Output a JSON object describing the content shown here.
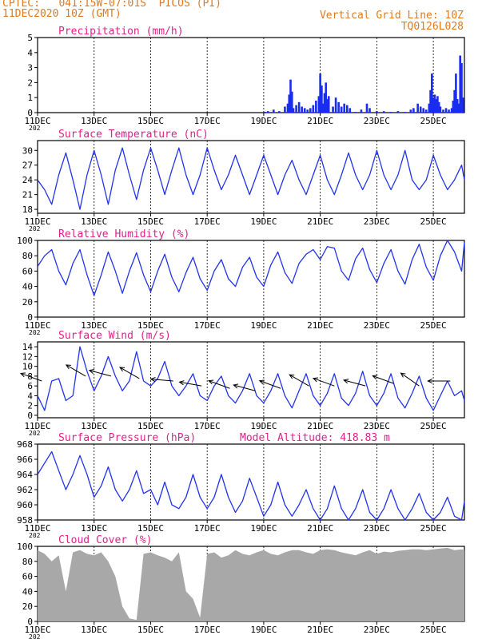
{
  "header": {
    "line1": "CPTEC:   041:15W-07:01S  PICOS (PI)",
    "line2": "11DEC2020 10Z (GMT)",
    "grid_note": "Vertical Grid Line: 10Z",
    "code": "TQ0126L028"
  },
  "colors": {
    "header": "#e07a1f",
    "title": "#e0218a",
    "line": "#2233ee",
    "bar": "#1a2cf0",
    "cloud": "#a8a8a8",
    "axis": "#000000"
  },
  "x_ticks": [
    "11DEC",
    "13DEC",
    "15DEC",
    "17DEC",
    "19DEC",
    "21DEC",
    "23DEC",
    "25DEC"
  ],
  "x_tick_days": [
    0,
    2,
    4,
    6,
    8,
    10,
    12,
    14
  ],
  "x_range_days": [
    0,
    15.1
  ],
  "year_stub": "202",
  "chart_data": [
    {
      "type": "bar",
      "title": "Precipitation (mm/h)",
      "ylim": [
        0,
        5
      ],
      "yticks": [
        0,
        1,
        2,
        3,
        4,
        5
      ],
      "x": [
        8.05,
        8.15,
        8.35,
        8.55,
        8.75,
        8.85,
        8.9,
        8.95,
        9.0,
        9.05,
        9.15,
        9.25,
        9.35,
        9.45,
        9.55,
        9.65,
        9.75,
        9.85,
        9.95,
        10.0,
        10.05,
        10.1,
        10.15,
        10.2,
        10.25,
        10.3,
        10.45,
        10.55,
        10.65,
        10.75,
        10.85,
        10.95,
        11.05,
        11.25,
        11.45,
        11.65,
        11.75,
        12.0,
        12.25,
        12.5,
        12.75,
        13.0,
        13.2,
        13.3,
        13.45,
        13.55,
        13.65,
        13.75,
        13.85,
        13.9,
        13.95,
        14.0,
        14.05,
        14.1,
        14.15,
        14.2,
        14.25,
        14.35,
        14.45,
        14.55,
        14.65,
        14.7,
        14.75,
        14.8,
        14.85,
        14.9,
        14.95,
        15.0,
        15.05
      ],
      "values": [
        0.05,
        0.1,
        0.2,
        0.1,
        0.4,
        0.6,
        1.2,
        2.2,
        1.4,
        0.3,
        0.5,
        0.7,
        0.4,
        0.3,
        0.2,
        0.3,
        0.5,
        0.8,
        1.1,
        2.6,
        1.8,
        0.6,
        1.3,
        2.0,
        0.9,
        1.1,
        0.4,
        1.0,
        0.7,
        0.4,
        0.6,
        0.5,
        0.3,
        0.05,
        0.2,
        0.6,
        0.3,
        0.1,
        0.1,
        0.05,
        0.1,
        0.05,
        0.2,
        0.3,
        0.6,
        0.4,
        0.3,
        0.2,
        0.6,
        1.5,
        2.6,
        1.0,
        1.2,
        0.9,
        1.1,
        0.7,
        0.4,
        0.2,
        0.3,
        0.2,
        0.3,
        0.8,
        1.5,
        2.6,
        0.9,
        0.6,
        3.8,
        3.3,
        1.0
      ]
    },
    {
      "type": "line",
      "title": "Surface Temperature (nC)",
      "ylim": [
        17.2,
        32
      ],
      "yticks": [
        18,
        21,
        24,
        27,
        30
      ],
      "x": [
        0,
        0.25,
        0.5,
        0.75,
        1,
        1.25,
        1.5,
        1.75,
        2,
        2.25,
        2.5,
        2.75,
        3,
        3.25,
        3.5,
        3.75,
        4,
        4.25,
        4.5,
        4.75,
        5,
        5.25,
        5.5,
        5.75,
        6,
        6.25,
        6.5,
        6.75,
        7,
        7.25,
        7.5,
        7.75,
        8,
        8.25,
        8.5,
        8.75,
        9,
        9.25,
        9.5,
        9.75,
        10,
        10.25,
        10.5,
        10.75,
        11,
        11.25,
        11.5,
        11.75,
        12,
        12.25,
        12.5,
        12.75,
        13,
        13.25,
        13.5,
        13.75,
        14,
        14.25,
        14.5,
        14.75,
        15,
        15.1
      ],
      "values": [
        24,
        22,
        19,
        25,
        29.5,
        24,
        18,
        25,
        30,
        25,
        19,
        26,
        30.5,
        25,
        20,
        26,
        30.5,
        26,
        21,
        26,
        30.5,
        25,
        21,
        25,
        30.5,
        26,
        22,
        25,
        29,
        25,
        21,
        25,
        29,
        25,
        21,
        25,
        28,
        24,
        21,
        25,
        29,
        24,
        21,
        25,
        29.5,
        25,
        22,
        25,
        30,
        25,
        22,
        25,
        30,
        24,
        22,
        24,
        29,
        25,
        22,
        24,
        27,
        24
      ]
    },
    {
      "type": "line",
      "title": "Relative Humidity (%)",
      "ylim": [
        0,
        100
      ],
      "yticks": [
        0,
        20,
        40,
        60,
        80,
        100
      ],
      "x": [
        0,
        0.25,
        0.5,
        0.75,
        1,
        1.25,
        1.5,
        1.75,
        2,
        2.25,
        2.5,
        2.75,
        3,
        3.25,
        3.5,
        3.75,
        4,
        4.25,
        4.5,
        4.75,
        5,
        5.25,
        5.5,
        5.75,
        6,
        6.25,
        6.5,
        6.75,
        7,
        7.25,
        7.5,
        7.75,
        8,
        8.25,
        8.5,
        8.75,
        9,
        9.25,
        9.5,
        9.75,
        10,
        10.25,
        10.5,
        10.75,
        11,
        11.25,
        11.5,
        11.75,
        12,
        12.25,
        12.5,
        12.75,
        13,
        13.25,
        13.5,
        13.75,
        14,
        14.25,
        14.5,
        14.75,
        15,
        15.1
      ],
      "values": [
        66,
        80,
        88,
        60,
        42,
        70,
        88,
        55,
        28,
        55,
        85,
        60,
        31,
        60,
        84,
        55,
        33,
        60,
        82,
        52,
        33,
        58,
        78,
        50,
        35,
        60,
        75,
        50,
        40,
        65,
        78,
        52,
        40,
        68,
        85,
        58,
        44,
        70,
        82,
        88,
        75,
        92,
        90,
        60,
        48,
        76,
        90,
        62,
        45,
        70,
        88,
        60,
        43,
        75,
        95,
        65,
        48,
        80,
        100,
        85,
        60,
        98
      ]
    },
    {
      "type": "line",
      "title": "Surface Wind (m/s)",
      "ylim": [
        -0.5,
        15
      ],
      "yticks": [
        0,
        2,
        4,
        6,
        8,
        10,
        12,
        14
      ],
      "x": [
        0,
        0.25,
        0.5,
        0.75,
        1,
        1.25,
        1.5,
        1.75,
        2,
        2.25,
        2.5,
        2.75,
        3,
        3.25,
        3.5,
        3.75,
        4,
        4.25,
        4.5,
        4.75,
        5,
        5.25,
        5.5,
        5.75,
        6,
        6.25,
        6.5,
        6.75,
        7,
        7.25,
        7.5,
        7.75,
        8,
        8.25,
        8.5,
        8.75,
        9,
        9.25,
        9.5,
        9.75,
        10,
        10.25,
        10.5,
        10.75,
        11,
        11.25,
        11.5,
        11.75,
        12,
        12.25,
        12.5,
        12.75,
        13,
        13.25,
        13.5,
        13.75,
        14,
        14.25,
        14.5,
        14.75,
        15,
        15.1
      ],
      "values": [
        4,
        1,
        7,
        7.5,
        3,
        4,
        14,
        9,
        5,
        8,
        12,
        8,
        5,
        7,
        13,
        7,
        6,
        7.5,
        11,
        6,
        4,
        6,
        8.5,
        4,
        3,
        6,
        8,
        4,
        2.5,
        5,
        8.5,
        4,
        2.5,
        5,
        8.5,
        4,
        1.5,
        5,
        8.5,
        4,
        2,
        4.5,
        8.5,
        3.5,
        2,
        4.5,
        9,
        4,
        2,
        4.5,
        8.5,
        3.5,
        1.5,
        4.5,
        8,
        3.5,
        1,
        4,
        7,
        4,
        5,
        3
      ]
    },
    {
      "type": "line",
      "title": "Surface Pressure (hPa)",
      "note": "Model Altitude: 418.83 m",
      "ylim": [
        958,
        968
      ],
      "yticks": [
        958,
        960,
        962,
        964,
        966,
        968
      ],
      "x": [
        0,
        0.25,
        0.5,
        0.75,
        1,
        1.25,
        1.5,
        1.75,
        2,
        2.25,
        2.5,
        2.75,
        3,
        3.25,
        3.5,
        3.75,
        4,
        4.25,
        4.5,
        4.75,
        5,
        5.25,
        5.5,
        5.75,
        6,
        6.25,
        6.5,
        6.75,
        7,
        7.25,
        7.5,
        7.75,
        8,
        8.25,
        8.5,
        8.75,
        9,
        9.25,
        9.5,
        9.75,
        10,
        10.25,
        10.5,
        10.75,
        11,
        11.25,
        11.5,
        11.75,
        12,
        12.25,
        12.5,
        12.75,
        13,
        13.25,
        13.5,
        13.75,
        14,
        14.25,
        14.5,
        14.75,
        15,
        15.1
      ],
      "values": [
        964,
        965.5,
        967,
        964.5,
        962,
        964,
        966.5,
        964,
        961,
        962.5,
        965,
        962,
        960.5,
        962,
        964.5,
        961.5,
        962,
        960,
        963,
        960,
        959.5,
        961,
        964,
        961,
        959.5,
        961,
        964,
        961,
        959,
        960.5,
        963.5,
        961,
        958.5,
        960,
        963,
        960,
        958.5,
        960,
        962,
        959.5,
        958,
        959.5,
        962.5,
        959.5,
        958,
        959.5,
        962,
        959,
        958,
        959.5,
        962,
        959.5,
        958,
        959.5,
        961.5,
        959,
        958,
        959,
        961,
        958.5,
        958,
        960.5
      ]
    },
    {
      "type": "area",
      "title": "Cloud Cover (%)",
      "ylim": [
        0,
        100
      ],
      "yticks": [
        0,
        20,
        40,
        60,
        80,
        100
      ],
      "x": [
        0,
        0.25,
        0.5,
        0.75,
        1,
        1.25,
        1.5,
        1.75,
        2,
        2.25,
        2.5,
        2.75,
        3,
        3.25,
        3.5,
        3.75,
        4,
        4.25,
        4.5,
        4.75,
        5,
        5.25,
        5.5,
        5.75,
        6,
        6.25,
        6.5,
        6.75,
        7,
        7.25,
        7.5,
        7.75,
        8,
        8.25,
        8.5,
        8.75,
        9,
        9.25,
        9.5,
        9.75,
        10,
        10.25,
        10.5,
        10.75,
        11,
        11.25,
        11.5,
        11.75,
        12,
        12.25,
        12.5,
        12.75,
        13,
        13.25,
        13.5,
        13.75,
        14,
        14.25,
        14.5,
        14.75,
        15,
        15.1
      ],
      "values": [
        95,
        90,
        80,
        88,
        40,
        92,
        95,
        90,
        88,
        92,
        80,
        60,
        20,
        4,
        2,
        90,
        92,
        88,
        85,
        80,
        92,
        40,
        30,
        5,
        90,
        92,
        85,
        88,
        95,
        90,
        88,
        92,
        95,
        90,
        88,
        92,
        95,
        95,
        92,
        90,
        95,
        96,
        95,
        92,
        90,
        88,
        92,
        95,
        90,
        93,
        92,
        94,
        95,
        96,
        96,
        95,
        96,
        97,
        98,
        95,
        96,
        95
      ]
    }
  ],
  "wind_arrows": [
    {
      "day": 0.15,
      "speed": 7,
      "angle_deg": 160
    },
    {
      "day": 1.7,
      "speed": 8,
      "angle_deg": 150
    },
    {
      "day": 2.6,
      "speed": 8,
      "angle_deg": 165
    },
    {
      "day": 3.6,
      "speed": 7.5,
      "angle_deg": 150
    },
    {
      "day": 4.8,
      "speed": 7,
      "angle_deg": 175
    },
    {
      "day": 5.8,
      "speed": 6,
      "angle_deg": 170
    },
    {
      "day": 6.8,
      "speed": 5.5,
      "angle_deg": 160
    },
    {
      "day": 7.7,
      "speed": 5,
      "angle_deg": 165
    },
    {
      "day": 8.6,
      "speed": 5.5,
      "angle_deg": 160
    },
    {
      "day": 9.6,
      "speed": 6,
      "angle_deg": 150
    },
    {
      "day": 10.5,
      "speed": 6,
      "angle_deg": 160
    },
    {
      "day": 11.6,
      "speed": 6,
      "angle_deg": 165
    },
    {
      "day": 12.6,
      "speed": 6.5,
      "angle_deg": 160
    },
    {
      "day": 13.5,
      "speed": 6,
      "angle_deg": 145
    },
    {
      "day": 14.6,
      "speed": 7,
      "angle_deg": 180
    }
  ]
}
